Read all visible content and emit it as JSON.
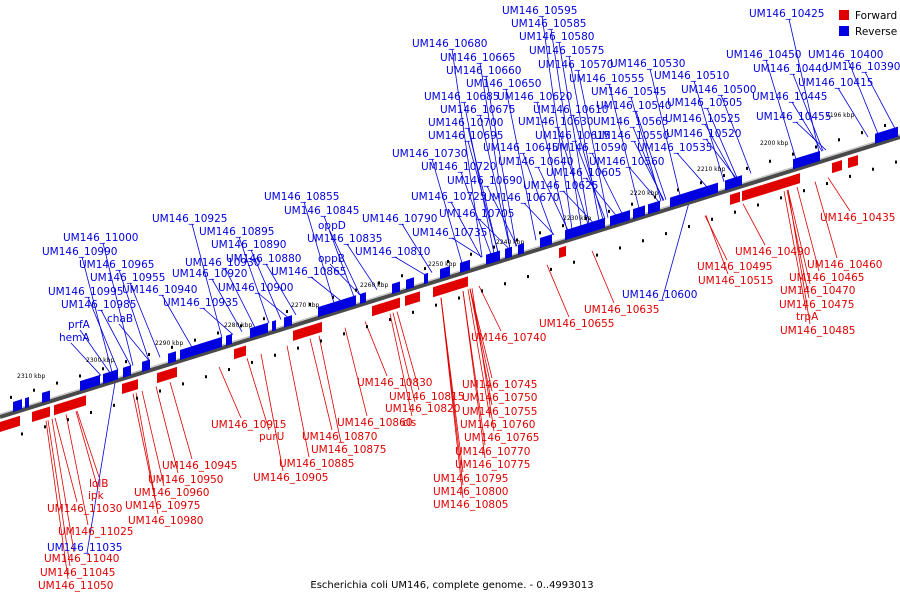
{
  "caption": "Escherichia coli UM146, complete genome. - 0..4993013",
  "legend": {
    "items": [
      {
        "label": "Forward",
        "color": "#e00000"
      },
      {
        "label": "Reverse",
        "color": "#0000e0"
      }
    ]
  },
  "colors": {
    "forward": "#e00000",
    "reverse": "#0000e0",
    "backbone": "#555555"
  },
  "ticks": [
    "2196 kbp",
    "2200 kbp",
    "2210 kbp",
    "2220 kbp",
    "2230 kbp",
    "2240 kbp",
    "2250 kbp",
    "2260 kbp",
    "2270 kbp",
    "2280 kbp",
    "2290 kbp",
    "2300 kbp",
    "2310 kbp"
  ],
  "reverse_labels": [
    "UM146_10595",
    "UM146_10585",
    "UM146_10580",
    "UM146_10680",
    "UM146_10575",
    "UM146_10665",
    "UM146_10570",
    "UM146_10530",
    "UM146_10660",
    "UM146_10555",
    "UM146_10510",
    "UM146_10650",
    "UM146_10545",
    "UM146_10500",
    "UM146_10685",
    "UM146_10620",
    "UM146_10540",
    "UM146_10505",
    "UM146_10675",
    "UM146_10610",
    "UM146_10700",
    "UM146_10630",
    "UM146_10565",
    "UM146_10525",
    "UM146_10695",
    "UM146_10615",
    "UM146_10550",
    "UM146_10520",
    "UM146_10645",
    "UM146_10590",
    "UM146_10535",
    "UM146_10730",
    "UM146_10640",
    "UM146_10560",
    "UM146_10720",
    "UM146_10605",
    "UM146_10690",
    "UM146_10625",
    "UM146_10725",
    "UM146_10670",
    "UM146_10855",
    "UM146_10845",
    "UM146_10705",
    "UM146_10925",
    "UM146_10790",
    "UM146_10735",
    "UM146_10895",
    "oppD",
    "UM146_10835",
    "UM146_10890",
    "UM146_11000",
    "UM146_10810",
    "UM146_10990",
    "UM146_10880",
    "oppB",
    "UM146_10965",
    "UM146_10930",
    "UM146_10865",
    "UM146_10955",
    "UM146_10920",
    "UM146_10940",
    "UM146_10900",
    "UM146_10995",
    "UM146_10935",
    "UM146_10985",
    "chaB",
    "prfA",
    "hemA",
    "UM146_10425",
    "UM146_10450",
    "UM146_10400",
    "UM146_10440",
    "UM146_10390",
    "UM146_10415",
    "UM146_10445",
    "UM146_10455",
    "UM146_10600",
    "UM146_11035"
  ],
  "forward_labels": [
    "UM146_10435",
    "UM146_10490",
    "UM146_10460",
    "UM146_10495",
    "UM146_10465",
    "UM146_10515",
    "UM146_10470",
    "UM146_10475",
    "UM146_10635",
    "trpA",
    "UM146_10655",
    "UM146_10485",
    "UM146_10740",
    "UM146_10830",
    "UM146_10745",
    "UM146_10815",
    "UM146_10750",
    "UM146_10820",
    "UM146_10755",
    "UM146_10860",
    "cls",
    "UM146_10760",
    "UM146_10915",
    "UM146_10870",
    "UM146_10765",
    "purU",
    "UM146_10875",
    "UM146_10770",
    "UM146_10885",
    "UM146_10775",
    "UM146_10945",
    "UM146_10905",
    "UM146_10795",
    "UM146_10950",
    "lolB",
    "UM146_10800",
    "UM146_10960",
    "ipk",
    "UM146_10805",
    "UM146_10975",
    "UM146_11030",
    "UM146_10980",
    "UM146_11025",
    "UM146_11040",
    "UM146_11045",
    "UM146_11050"
  ]
}
